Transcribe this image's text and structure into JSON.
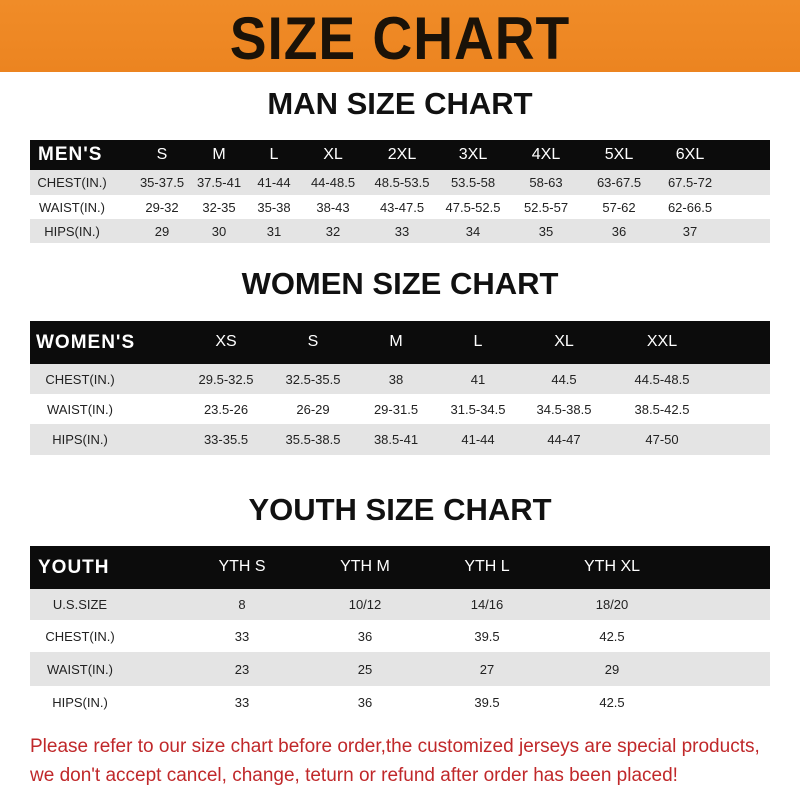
{
  "title": "SIZE CHART",
  "men": {
    "heading": "MAN SIZE CHART",
    "columns": [
      "MEN'S",
      "S",
      "M",
      "L",
      "XL",
      "2XL",
      "3XL",
      "4XL",
      "5XL",
      "6XL"
    ],
    "rows": [
      [
        "CHEST(IN.)",
        "35-37.5",
        "37.5-41",
        "41-44",
        "44-48.5",
        "48.5-53.5",
        "53.5-58",
        "58-63",
        "63-67.5",
        "67.5-72"
      ],
      [
        "WAIST(IN.)",
        "29-32",
        "32-35",
        "35-38",
        "38-43",
        "43-47.5",
        "47.5-52.5",
        "52.5-57",
        "57-62",
        "62-66.5"
      ],
      [
        "HIPS(IN.)",
        "29",
        "30",
        "31",
        "32",
        "33",
        "34",
        "35",
        "36",
        "37"
      ]
    ]
  },
  "women": {
    "heading": "WOMEN SIZE CHART",
    "columns": [
      "WOMEN'S",
      "XS",
      "S",
      "M",
      "L",
      "XL",
      "XXL"
    ],
    "rows": [
      [
        "CHEST(IN.)",
        "29.5-32.5",
        "32.5-35.5",
        "38",
        "41",
        "44.5",
        "44.5-48.5"
      ],
      [
        "WAIST(IN.)",
        "23.5-26",
        "26-29",
        "29-31.5",
        "31.5-34.5",
        "34.5-38.5",
        "38.5-42.5"
      ],
      [
        "HIPS(IN.)",
        "33-35.5",
        "35.5-38.5",
        "38.5-41",
        "41-44",
        "44-47",
        "47-50"
      ]
    ]
  },
  "youth": {
    "heading": "YOUTH SIZE CHART",
    "columns": [
      "YOUTH",
      "YTH S",
      "YTH M",
      "YTH L",
      "YTH XL"
    ],
    "rows": [
      [
        "U.S.SIZE",
        "8",
        "10/12",
        "14/16",
        "18/20"
      ],
      [
        "CHEST(IN.)",
        "33",
        "36",
        "39.5",
        "42.5"
      ],
      [
        "WAIST(IN.)",
        "23",
        "25",
        "27",
        "29"
      ],
      [
        "HIPS(IN.)",
        "33",
        "36",
        "39.5",
        "42.5"
      ]
    ]
  },
  "footer": {
    "line1": "Please refer to our size chart before order,the customized jerseys are special products,",
    "line2": "we don't accept cancel, change, teturn or refund after order has been placed!"
  },
  "colors": {
    "banner": "#f08c28",
    "header_row": "#0c0c0c",
    "stripe": "#e4e4e4",
    "notice": "#c0282a"
  }
}
